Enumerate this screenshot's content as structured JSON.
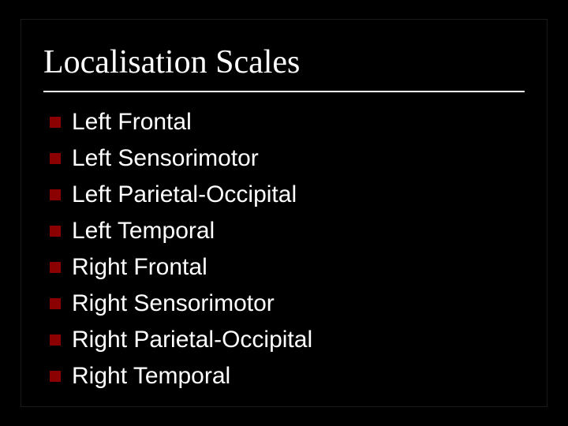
{
  "slide": {
    "title": "Localisation Scales",
    "title_fontsize": 42,
    "title_font": "Times New Roman",
    "title_color": "#ffffff",
    "divider_color": "#ffffff",
    "background_color": "#000000",
    "bullet_color": "#8b0000",
    "bullet_size": 14,
    "item_fontsize": 30,
    "item_color": "#ffffff",
    "item_font": "Arial",
    "items": [
      {
        "label": "Left Frontal"
      },
      {
        "label": "Left Sensorimotor"
      },
      {
        "label": "Left Parietal-Occipital"
      },
      {
        "label": "Left Temporal"
      },
      {
        "label": "Right Frontal"
      },
      {
        "label": "Right Sensorimotor"
      },
      {
        "label": "Right Parietal-Occipital"
      },
      {
        "label": "Right Temporal"
      }
    ]
  }
}
